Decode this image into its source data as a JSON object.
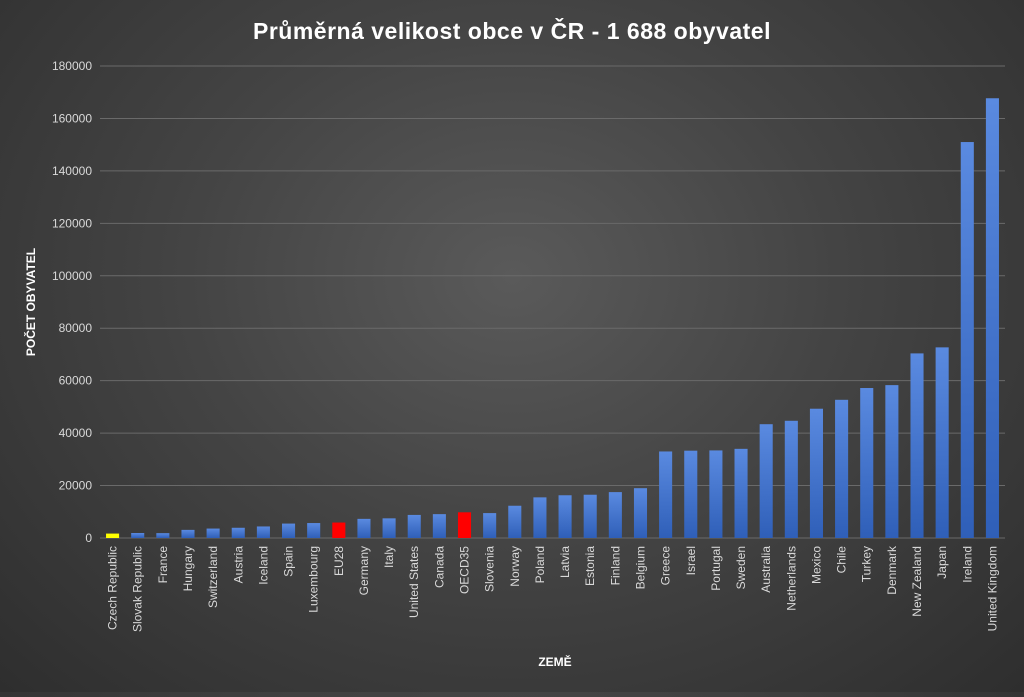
{
  "chart_data": {
    "type": "bar",
    "title": "Průměrná velikost obce v ČR - 1 688 obyvatel",
    "xlabel": "ZEMĚ",
    "ylabel": "POČET OBYVATEL",
    "ylim": [
      0,
      180000
    ],
    "yticks": [
      0,
      20000,
      40000,
      60000,
      80000,
      100000,
      120000,
      140000,
      160000,
      180000
    ],
    "grid": true,
    "categories": [
      "Czech Republic",
      "Slovak Republic",
      "France",
      "Hungary",
      "Switzerland",
      "Austria",
      "Iceland",
      "Spain",
      "Luxembourg",
      "EU28",
      "Germany",
      "Italy",
      "United States",
      "Canada",
      "OECD35",
      "Slovenia",
      "Norway",
      "Poland",
      "Latvia",
      "Estonia",
      "Finland",
      "Belgium",
      "Greece",
      "Israel",
      "Portugal",
      "Sweden",
      "Australia",
      "Netherlands",
      "Mexico",
      "Chile",
      "Turkey",
      "Denmark",
      "New Zealand",
      "Japan",
      "Ireland",
      "United Kingdom"
    ],
    "values": [
      1688,
      1900,
      1850,
      3100,
      3600,
      3900,
      4400,
      5500,
      5700,
      5900,
      7300,
      7500,
      8800,
      9100,
      9800,
      9500,
      12300,
      15500,
      16300,
      16500,
      17500,
      19000,
      33000,
      33300,
      33400,
      34000,
      43400,
      44700,
      49300,
      52700,
      57200,
      58300,
      70400,
      72700,
      151000,
      167700
    ],
    "highlight": {
      "Czech Republic": "#ffff00",
      "EU28": "#ff0000",
      "OECD35": "#ff0000"
    },
    "colors": {
      "bar": "#4472c4",
      "bar_top": "#5a8ae0",
      "text": "#d9d9d9",
      "title": "#ffffff",
      "grid": "#6a6a6a"
    }
  }
}
